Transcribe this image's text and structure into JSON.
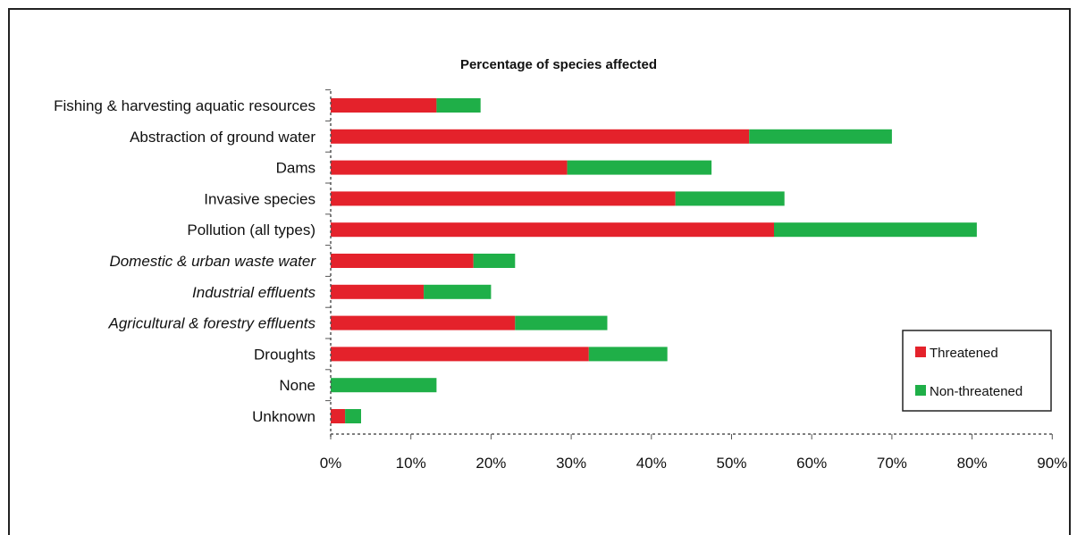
{
  "chart_data": {
    "type": "bar",
    "orientation": "horizontal",
    "stacked": true,
    "title": "Percentage of species affected",
    "xlim": [
      0,
      90
    ],
    "x_ticks": [
      "0%",
      "10%",
      "20%",
      "30%",
      "40%",
      "50%",
      "60%",
      "70%",
      "80%",
      "90%"
    ],
    "categories": [
      "Fishing & harvesting aquatic resources",
      "Abstraction of ground water",
      "Dams",
      "Invasive species",
      "Pollution (all types)",
      "Domestic & urban waste water",
      "Industrial effluents",
      "Agricultural & forestry effluents",
      "Droughts",
      "None",
      "Unknown"
    ],
    "italic_categories": [
      false,
      false,
      false,
      false,
      false,
      true,
      true,
      true,
      false,
      false,
      false
    ],
    "series": [
      {
        "name": "Threatened",
        "color": "#e4222b",
        "values": [
          13.2,
          52.2,
          29.5,
          43.0,
          55.3,
          17.8,
          11.6,
          23.0,
          32.2,
          0,
          1.8
        ]
      },
      {
        "name": "Non-threatened",
        "color": "#1faf48",
        "values": [
          5.5,
          17.8,
          18.0,
          13.6,
          25.3,
          5.2,
          8.4,
          11.5,
          9.8,
          13.2,
          2.0
        ]
      }
    ],
    "legend_position": "right"
  }
}
